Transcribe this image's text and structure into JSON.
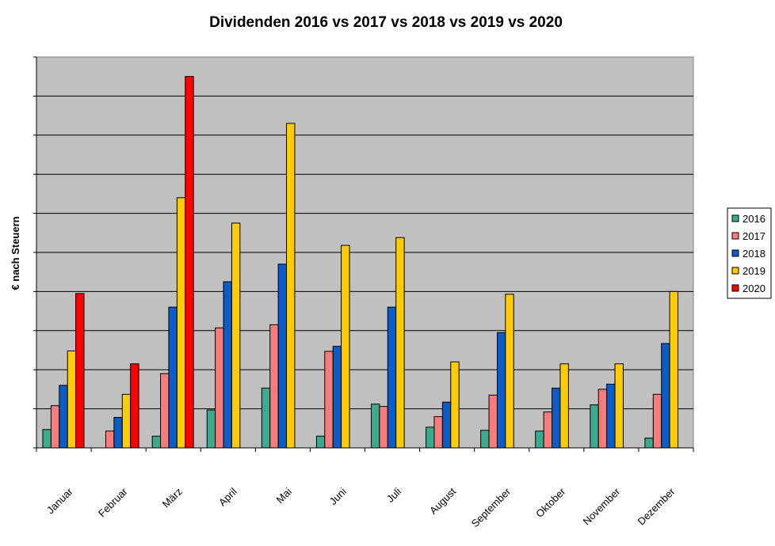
{
  "chart_data": {
    "type": "bar",
    "title": "Dividenden 2016 vs 2017 vs 2018 vs 2019 vs 2020",
    "xlabel": "",
    "ylabel": "€ nach Steuern",
    "ylim": [
      0,
      10
    ],
    "categories": [
      "Januar",
      "Februar",
      "März",
      "April",
      "Mai",
      "Juni",
      "Juli",
      "August",
      "September",
      "Oktober",
      "November",
      "Dezember"
    ],
    "series": [
      {
        "name": "2016",
        "color": "#3caa8c",
        "values": [
          0.47,
          0,
          0.3,
          0.97,
          1.53,
          0.3,
          1.12,
          0.53,
          0.45,
          0.43,
          1.1,
          0.25
        ]
      },
      {
        "name": "2017",
        "color": "#f87c7c",
        "values": [
          1.08,
          0.43,
          1.9,
          3.07,
          3.15,
          2.47,
          1.06,
          0.8,
          1.35,
          0.92,
          1.5,
          1.37
        ]
      },
      {
        "name": "2018",
        "color": "#0a5cc8",
        "values": [
          1.6,
          0.78,
          3.6,
          4.25,
          4.7,
          2.6,
          3.6,
          1.17,
          2.95,
          1.53,
          1.63,
          2.67
        ]
      },
      {
        "name": "2019",
        "color": "#ffcc00",
        "values": [
          2.48,
          1.37,
          6.4,
          5.75,
          8.3,
          5.18,
          5.38,
          2.2,
          3.93,
          2.15,
          2.15,
          4.0
        ]
      },
      {
        "name": "2020",
        "color": "#ff0000",
        "values": [
          3.95,
          2.15,
          9.5,
          null,
          null,
          null,
          null,
          null,
          null,
          null,
          null,
          null
        ]
      }
    ],
    "grid": true,
    "legend_position": "right",
    "plot_background": "#c0c0c0",
    "bar_outline": "#000000"
  }
}
